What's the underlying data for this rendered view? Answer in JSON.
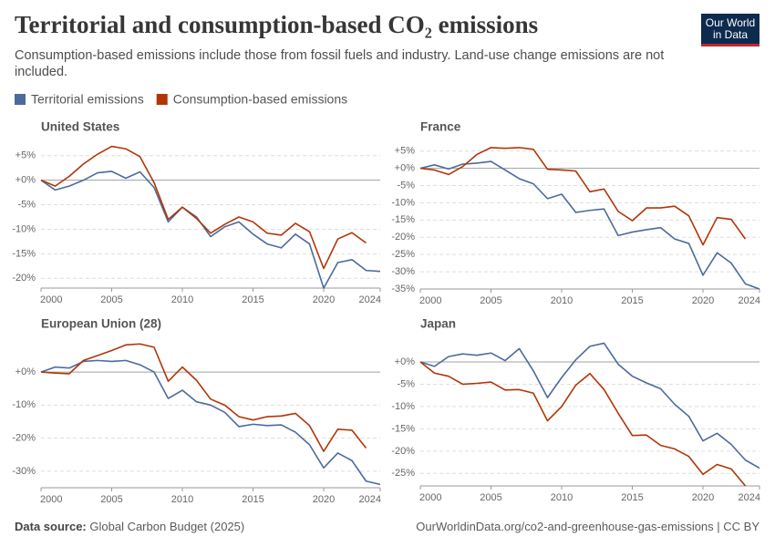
{
  "title": "Territorial and consumption-based CO₂ emissions",
  "subtitle": "Consumption-based emissions include those from fossil fuels and industry. Land-use change emissions are not included.",
  "logo": [
    "Our World",
    "in Data"
  ],
  "source_label": "Data source:",
  "source": "Global Carbon Budget (2025)",
  "url": "OurWorldinData.org/co2-and-greenhouse-gas-emissions | CC BY",
  "chart_data": [
    {
      "type": "line",
      "title": "United States",
      "x": [
        2000,
        2001,
        2002,
        2003,
        2004,
        2005,
        2006,
        2007,
        2008,
        2009,
        2010,
        2011,
        2012,
        2013,
        2014,
        2015,
        2016,
        2017,
        2018,
        2019,
        2020,
        2021,
        2022,
        2023,
        2024
      ],
      "xlim": [
        2000,
        2024
      ],
      "xticks": [
        2000,
        2005,
        2010,
        2015,
        2020,
        2024
      ],
      "ylim": [
        -22,
        7
      ],
      "yticks": [
        {
          "value": 5,
          "label": "+5%"
        },
        {
          "value": 0,
          "label": "+0%"
        },
        {
          "value": -5,
          "label": "-5%"
        },
        {
          "value": -10,
          "label": "-10%"
        },
        {
          "value": -15,
          "label": "-15%"
        },
        {
          "value": -20,
          "label": "-20%"
        }
      ],
      "grid": true,
      "series": [
        {
          "name": "Territorial emissions",
          "color": "#4c6a9c",
          "values": [
            0,
            -2,
            -1.2,
            0,
            1.5,
            1.8,
            0.4,
            1.7,
            -1.5,
            -8.5,
            -5.5,
            -7.5,
            -11.5,
            -9.5,
            -8.5,
            -11,
            -13,
            -13.8,
            -11,
            -13,
            -22,
            -16.8,
            -16.2,
            -18.4,
            -18.6
          ]
        },
        {
          "name": "Consumption-based emissions",
          "color": "#b13507",
          "values": [
            0,
            -1.2,
            0.8,
            3.3,
            5.3,
            6.9,
            6.4,
            4.8,
            -0.5,
            -8,
            -5.5,
            -7.8,
            -10.8,
            -9,
            -7.5,
            -8.5,
            -10.8,
            -11.2,
            -8.8,
            -10.5,
            -18,
            -12,
            -10.7,
            -12.8,
            null
          ]
        }
      ]
    },
    {
      "type": "line",
      "title": "France",
      "x": [
        2000,
        2001,
        2002,
        2003,
        2004,
        2005,
        2006,
        2007,
        2008,
        2009,
        2010,
        2011,
        2012,
        2013,
        2014,
        2015,
        2016,
        2017,
        2018,
        2019,
        2020,
        2021,
        2022,
        2023,
        2024
      ],
      "xlim": [
        2000,
        2024
      ],
      "xticks": [
        2000,
        2005,
        2010,
        2015,
        2020,
        2024
      ],
      "ylim": [
        -35,
        6.5
      ],
      "yticks": [
        {
          "value": 5,
          "label": "+5%"
        },
        {
          "value": 0,
          "label": "+0%"
        },
        {
          "value": -5,
          "label": "-5%"
        },
        {
          "value": -10,
          "label": "-10%"
        },
        {
          "value": -15,
          "label": "-15%"
        },
        {
          "value": -20,
          "label": "-20%"
        },
        {
          "value": -25,
          "label": "-25%"
        },
        {
          "value": -30,
          "label": "-30%"
        },
        {
          "value": -35,
          "label": "-35%"
        }
      ],
      "grid": true,
      "series": [
        {
          "color": "#4c6a9c",
          "values": [
            0,
            1,
            -0.2,
            1.2,
            1.5,
            2,
            -0.5,
            -3,
            -4.5,
            -8.8,
            -7.5,
            -12.8,
            -12.2,
            -11.8,
            -19.5,
            -18.5,
            -17.8,
            -17.2,
            -20.5,
            -21.8,
            -31,
            -24.5,
            -27.5,
            -33.5,
            -35
          ]
        },
        {
          "color": "#b13507",
          "values": [
            0,
            -0.5,
            -1.8,
            0.5,
            4,
            6,
            5.8,
            6,
            5.5,
            -0.3,
            -0.5,
            -0.8,
            -6.8,
            -6,
            -12.5,
            -15.2,
            -11.5,
            -11.5,
            -11,
            -13.8,
            -22.2,
            -14.3,
            -14.8,
            -20.5,
            null
          ]
        }
      ]
    },
    {
      "type": "line",
      "title": "European Union (28)",
      "x": [
        2000,
        2001,
        2002,
        2003,
        2004,
        2005,
        2006,
        2007,
        2008,
        2009,
        2010,
        2011,
        2012,
        2013,
        2014,
        2015,
        2016,
        2017,
        2018,
        2019,
        2020,
        2021,
        2022,
        2023,
        2024
      ],
      "xlim": [
        2000,
        2024
      ],
      "xticks": [
        2000,
        2005,
        2010,
        2015,
        2020,
        2024
      ],
      "ylim": [
        -35,
        10.5
      ],
      "yticks": [
        {
          "value": 0,
          "label": "+0%"
        },
        {
          "value": -10,
          "label": "-10%"
        },
        {
          "value": -20,
          "label": "-20%"
        },
        {
          "value": -30,
          "label": "-30%"
        }
      ],
      "grid": true,
      "series": [
        {
          "color": "#4c6a9c",
          "values": [
            0,
            1.5,
            1.2,
            3.2,
            3.5,
            3.2,
            3.5,
            2.2,
            0,
            -8,
            -5.5,
            -9,
            -10,
            -12.2,
            -16.5,
            -15.8,
            -16.2,
            -16,
            -18.2,
            -22,
            -29,
            -24.5,
            -26.8,
            -33,
            -34
          ]
        },
        {
          "color": "#b13507",
          "values": [
            0,
            -0.3,
            -0.5,
            3.5,
            5,
            6.5,
            8.2,
            8.5,
            7.5,
            -2.8,
            1.5,
            -2.5,
            -8.2,
            -10,
            -13.5,
            -14.5,
            -13.5,
            -13.3,
            -12.5,
            -16.2,
            -24,
            -17.3,
            -17.6,
            -23,
            null
          ]
        }
      ]
    },
    {
      "type": "line",
      "title": "Japan",
      "x": [
        2000,
        2001,
        2002,
        2003,
        2004,
        2005,
        2006,
        2007,
        2008,
        2009,
        2010,
        2011,
        2012,
        2013,
        2014,
        2015,
        2016,
        2017,
        2018,
        2019,
        2020,
        2021,
        2022,
        2023,
        2024
      ],
      "xlim": [
        2000,
        2024
      ],
      "xticks": [
        2000,
        2005,
        2010,
        2015,
        2020,
        2024
      ],
      "ylim": [
        -27.8,
        4.5
      ],
      "yticks": [
        {
          "value": 0,
          "label": "+0%"
        },
        {
          "value": -5,
          "label": "-5%"
        },
        {
          "value": -10,
          "label": "-10%"
        },
        {
          "value": -15,
          "label": "-15%"
        },
        {
          "value": -20,
          "label": "-20%"
        },
        {
          "value": -25,
          "label": "-25%"
        }
      ],
      "grid": true,
      "series": [
        {
          "color": "#4c6a9c",
          "values": [
            0,
            -1,
            1.2,
            1.8,
            1.5,
            2,
            0.3,
            3,
            -2,
            -8,
            -3.5,
            0.5,
            3.5,
            4.2,
            -0.5,
            -3.2,
            -4.7,
            -6,
            -9.5,
            -12.2,
            -17.7,
            -16,
            -18.5,
            -22,
            -23.8
          ]
        },
        {
          "color": "#b13507",
          "values": [
            0,
            -2.5,
            -3.2,
            -5,
            -4.8,
            -4.5,
            -6.3,
            -6.2,
            -7,
            -13.2,
            -10,
            -5.2,
            -2.6,
            -6.2,
            -11.5,
            -16.5,
            -16.4,
            -18.7,
            -19.5,
            -21.2,
            -25.2,
            -23,
            -24,
            -27.8,
            null
          ]
        }
      ]
    }
  ]
}
